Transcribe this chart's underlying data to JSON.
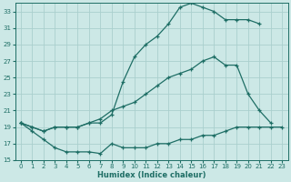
{
  "xlabel": "Humidex (Indice chaleur)",
  "background_color": "#cce8e6",
  "grid_color": "#aacfcd",
  "line_color": "#1e6e65",
  "xlim": [
    -0.5,
    23.5
  ],
  "ylim": [
    15,
    34
  ],
  "xticks": [
    0,
    1,
    2,
    3,
    4,
    5,
    6,
    7,
    8,
    9,
    10,
    11,
    12,
    13,
    14,
    15,
    16,
    17,
    18,
    19,
    20,
    21,
    22,
    23
  ],
  "yticks": [
    15,
    17,
    19,
    21,
    23,
    25,
    27,
    29,
    31,
    33
  ],
  "line_top_x": [
    0,
    1,
    2,
    3,
    4,
    5,
    6,
    7,
    8,
    9,
    10,
    11,
    12,
    13,
    14,
    15,
    16,
    17,
    18,
    19,
    20,
    21,
    22
  ],
  "line_top_y": [
    19.5,
    19.0,
    18.5,
    19.0,
    19.0,
    19.0,
    19.5,
    19.5,
    20.5,
    24.5,
    27.5,
    29.0,
    30.0,
    31.5,
    33.5,
    34.0,
    33.5,
    33.0,
    32.0,
    32.0,
    32.0,
    31.5,
    null
  ],
  "line_mid_x": [
    0,
    1,
    2,
    3,
    4,
    5,
    6,
    7,
    8,
    9,
    10,
    11,
    12,
    13,
    14,
    15,
    16,
    17,
    18,
    19,
    20,
    21,
    22
  ],
  "line_mid_y": [
    19.5,
    19.0,
    18.5,
    19.0,
    19.0,
    19.0,
    19.5,
    20.0,
    21.0,
    21.5,
    22.0,
    23.0,
    24.0,
    25.0,
    25.5,
    26.0,
    27.0,
    27.5,
    26.5,
    26.5,
    23.0,
    21.0,
    19.5
  ],
  "line_bot_x": [
    0,
    1,
    2,
    3,
    4,
    5,
    6,
    7,
    8,
    9,
    10,
    11,
    12,
    13,
    14,
    15,
    16,
    17,
    18,
    19,
    20,
    21,
    22,
    23
  ],
  "line_bot_y": [
    19.5,
    18.5,
    17.5,
    16.5,
    16.0,
    16.0,
    16.0,
    15.8,
    17.0,
    16.5,
    16.5,
    16.5,
    17.0,
    17.0,
    17.5,
    17.5,
    18.0,
    18.0,
    18.5,
    19.0,
    19.0,
    19.0,
    19.0,
    19.0
  ]
}
